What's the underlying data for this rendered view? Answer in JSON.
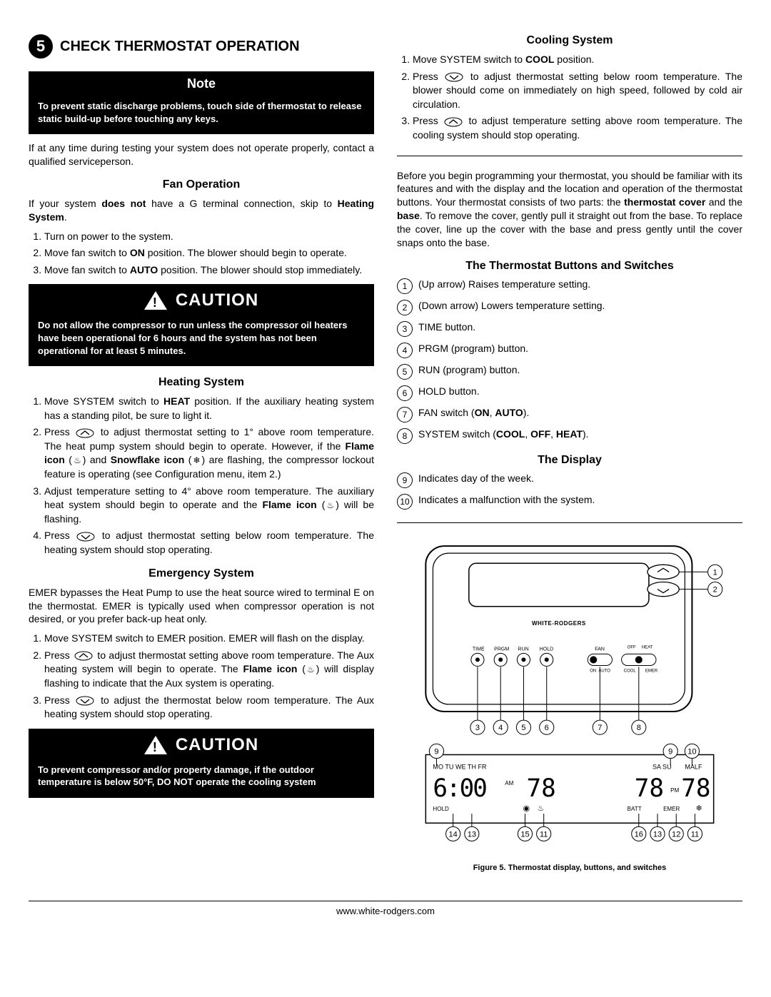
{
  "step": {
    "number": "5",
    "title": "CHECK THERMOSTAT OPERATION"
  },
  "note": {
    "header": "Note",
    "body": "To prevent static discharge problems, touch side of thermostat to release static build-up before touching any keys."
  },
  "intro1": "If at any time during testing your system does not operate properly, contact a qualified serviceperson.",
  "fan": {
    "title": "Fan Operation",
    "intro_a": "If your system ",
    "intro_b": "does not",
    "intro_c": " have a G terminal connection, skip to ",
    "intro_d": "Heating System",
    "intro_e": ".",
    "items": [
      "Turn on power to the system.",
      "Move fan switch to <b>ON</b> position. The blower should begin to operate.",
      "Move fan switch to <b>AUTO</b> position. The blower should stop immediately."
    ]
  },
  "caution1": {
    "title": "CAUTION",
    "body": "Do not allow the compressor to run unless the compressor oil heaters have been operational for 6 hours and the system has not been operational for at least 5 minutes."
  },
  "heat": {
    "title": "Heating System",
    "items": [
      "Move SYSTEM switch to <b>HEAT</b> position. If the auxiliary heating system has a standing pilot, be sure to light it.",
      "Press {up} to adjust thermostat setting to 1° above room temperature. The heat pump system should begin to operate. However, if the <b>Flame icon</b> ({flame}) and <b>Snowflake icon</b> ({snow}) are flashing, the compressor lockout feature is operating (see Configuration menu, item 2.)",
      "Adjust temperature setting to 4° above room temperature. The auxiliary heat system should begin to operate and the <b>Flame icon</b> ({flame}) will be flashing.",
      "Press {down} to adjust thermostat setting below room temperature. The heating system should stop operating."
    ]
  },
  "emer": {
    "title": "Emergency System",
    "intro": "EMER bypasses the Heat Pump to use the heat source wired to terminal E on the thermostat. EMER is typically used when compressor operation is not desired, or you prefer back-up heat only.",
    "items": [
      "Move SYSTEM switch to EMER position. EMER will flash on the display.",
      "Press {up} to adjust thermostat setting above room temperature. The Aux heating system will begin to operate. The <b>Flame icon</b> ({flame}) will display flashing to indicate that the Aux system is operating.",
      "Press {down} to adjust the thermostat below room temperature. The Aux heating system should stop operating."
    ]
  },
  "caution2": {
    "title": "CAUTION",
    "body": "To prevent compressor and/or property damage, if the outdoor temperature is below 50°F, DO NOT operate the cooling system"
  },
  "cool": {
    "title": "Cooling System",
    "items": [
      "Move SYSTEM switch to <b>COOL</b> position.",
      "Press {down} to adjust thermostat setting below room temperature. The blower should come on immediately on high speed, followed by cold air circulation.",
      "Press {up} to adjust temperature setting above room temperature. The cooling system should stop operating."
    ]
  },
  "intro2": "Before you begin programming your thermostat, you should be familiar with its features and with the display and the location and operation of the thermostat buttons. Your thermostat consists of two parts: the <b>thermostat cover</b> and the <b>base</b>. To remove the cover, gently pull it straight out from the base. To replace the cover, line up the cover with the base and press gently until the cover snaps onto the base.",
  "buttons": {
    "title": "The Thermostat Buttons and Switches",
    "items": [
      {
        "n": "1",
        "t": "(Up arrow) Raises temperature setting."
      },
      {
        "n": "2",
        "t": "(Down arrow) Lowers temperature setting."
      },
      {
        "n": "3",
        "t": "TIME button."
      },
      {
        "n": "4",
        "t": "PRGM (program) button."
      },
      {
        "n": "5",
        "t": "RUN (program) button."
      },
      {
        "n": "6",
        "t": "HOLD button."
      },
      {
        "n": "7",
        "t": "FAN switch (<b>ON</b>, <b>AUTO</b>)."
      },
      {
        "n": "8",
        "t": "SYSTEM switch (<b>COOL</b>, <b>OFF</b>, <b>HEAT</b>)."
      }
    ]
  },
  "display": {
    "title": "The Display",
    "items": [
      {
        "n": "9",
        "t": "Indicates day of the week."
      },
      {
        "n": "10",
        "t": "Indicates a malfunction with the system."
      }
    ]
  },
  "diagram": {
    "brand": "WHITE-RODGERS",
    "labels": [
      "TIME",
      "PRGM",
      "RUN",
      "HOLD",
      "FAN",
      "OFF",
      "HEAT",
      "ON",
      "AUTO",
      "COOL",
      "EMER"
    ],
    "top_callouts": [
      "1",
      "2"
    ],
    "mid_callouts": [
      "3",
      "4",
      "5",
      "6",
      "7",
      "8"
    ],
    "lcd_days_l": "MO TU WE TH FR",
    "lcd_days_r": "SA SU",
    "lcd_malf": "MALF",
    "lcd_time": "6:00",
    "lcd_am": "AM",
    "lcd_pm": "PM",
    "lcd_temp_l": "78",
    "lcd_temp_r": "78",
    "lcd_hold": "HOLD",
    "lcd_batt": "BATT",
    "lcd_emer": "EMER",
    "lcd_bot_l": [
      "9"
    ],
    "lcd_bot_r": [
      "9",
      "10"
    ],
    "lcd_foot_l": [
      "14",
      "13",
      "15",
      "11"
    ],
    "lcd_foot_r": [
      "16",
      "13",
      "12",
      "11"
    ],
    "caption": "Figure 5. Thermostat display, buttons, and switches"
  },
  "footer": "www.white-rodgers.com"
}
